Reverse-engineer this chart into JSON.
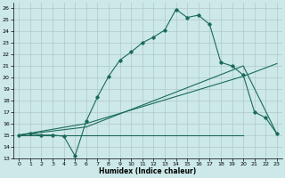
{
  "xlabel": "Humidex (Indice chaleur)",
  "xlim": [
    -0.5,
    23.5
  ],
  "ylim": [
    13,
    26.5
  ],
  "yticks": [
    13,
    14,
    15,
    16,
    17,
    18,
    19,
    20,
    21,
    22,
    23,
    24,
    25,
    26
  ],
  "xticks": [
    0,
    1,
    2,
    3,
    4,
    5,
    6,
    7,
    8,
    9,
    10,
    11,
    12,
    13,
    14,
    15,
    16,
    17,
    18,
    19,
    20,
    21,
    22,
    23
  ],
  "bg_color": "#cce8e8",
  "line_color": "#1a6b5a",
  "grid_color": "#b0c8c8",
  "line1_x": [
    0,
    1,
    2,
    3,
    4,
    5,
    6,
    7,
    8,
    9,
    10,
    11,
    12,
    13,
    14,
    15,
    16,
    17,
    18,
    19,
    20,
    21,
    22,
    23
  ],
  "line1_y": [
    15.0,
    15.1,
    15.0,
    15.0,
    14.9,
    13.2,
    16.2,
    18.3,
    20.1,
    21.5,
    22.2,
    23.0,
    23.5,
    24.1,
    25.9,
    25.2,
    25.4,
    24.6,
    21.3,
    21.0,
    20.2,
    17.0,
    16.5,
    15.1
  ],
  "line2_x": [
    0,
    6,
    20,
    23
  ],
  "line2_y": [
    15.0,
    15.7,
    21.0,
    15.1
  ],
  "line3_x": [
    0,
    6,
    20,
    23
  ],
  "line3_y": [
    15.0,
    16.0,
    20.1,
    21.2
  ],
  "line4_x": [
    0,
    20
  ],
  "line4_y": [
    15.0,
    15.0
  ]
}
